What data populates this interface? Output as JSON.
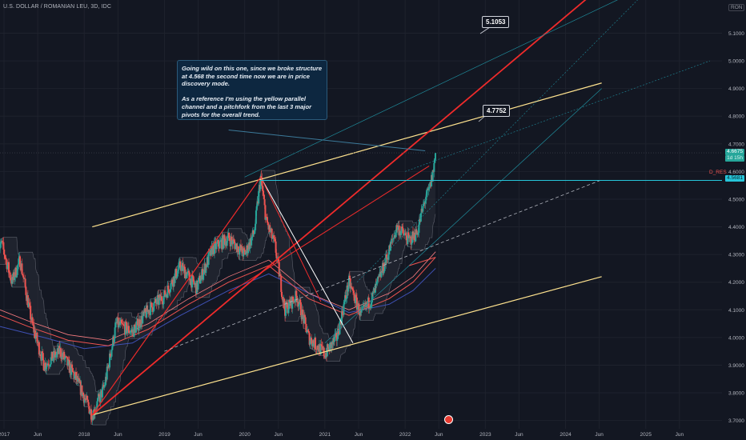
{
  "symbol_title": "U.S. DOLLAR / ROMANIAN LEU, 3D, IDC",
  "currency_badge": "RON",
  "annotation": {
    "line1": "Going wild on this one, since we broke structure at 4.568 the second time now we are in price discovery mode.",
    "line2": "As a reference I'm using the yellow parallel channel and a pitchfork from the last 3 major pivots for the overall trend."
  },
  "callouts": [
    "5.1053",
    "4.7752"
  ],
  "price_tags": {
    "last": "4.6675",
    "countdown": "1d 15h",
    "resistance": "4.5681",
    "resistance_label": "D_RES"
  },
  "icons": {
    "logo": "tradingview-logo"
  },
  "colors": {
    "background": "#131722",
    "up": "#26a69a",
    "down": "#ef5350",
    "channel": "#ffe38f",
    "pitchfork": "#ef2b2b",
    "teal": "#26c6da",
    "ma_blue": "#3f51b5"
  },
  "chart_data": {
    "type": "line",
    "symbol": "USD/RON",
    "interval": "3D",
    "yticks": [
      3.7,
      3.8,
      3.9,
      4.0,
      4.1,
      4.2,
      4.3,
      4.4,
      4.5,
      4.6,
      4.7,
      4.8,
      4.9,
      5.0,
      5.1
    ],
    "ylim": [
      3.67,
      5.22
    ],
    "xlim": [
      2016.95,
      2025.95
    ],
    "xticks": [
      {
        "t": 2017.0,
        "label": "2017"
      },
      {
        "t": 2017.42,
        "label": "Jun"
      },
      {
        "t": 2018.0,
        "label": "2018"
      },
      {
        "t": 2018.42,
        "label": "Jun"
      },
      {
        "t": 2019.0,
        "label": "2019"
      },
      {
        "t": 2019.42,
        "label": "Jun"
      },
      {
        "t": 2020.0,
        "label": "2020"
      },
      {
        "t": 2020.42,
        "label": "Jun"
      },
      {
        "t": 2021.0,
        "label": "2021"
      },
      {
        "t": 2021.42,
        "label": "Jun"
      },
      {
        "t": 2022.0,
        "label": "2022"
      },
      {
        "t": 2022.42,
        "label": "Jun"
      },
      {
        "t": 2023.0,
        "label": "2023"
      },
      {
        "t": 2023.42,
        "label": "Jun"
      },
      {
        "t": 2024.0,
        "label": "2024"
      },
      {
        "t": 2024.42,
        "label": "Jun"
      },
      {
        "t": 2025.0,
        "label": "2025"
      },
      {
        "t": 2025.42,
        "label": "Jun"
      }
    ],
    "price_path": [
      [
        2016.92,
        4.3
      ],
      [
        2016.97,
        4.34
      ],
      [
        2017.1,
        4.2
      ],
      [
        2017.2,
        4.28
      ],
      [
        2017.35,
        4.05
      ],
      [
        2017.5,
        3.9
      ],
      [
        2017.7,
        3.95
      ],
      [
        2017.9,
        3.85
      ],
      [
        2018.1,
        3.72
      ],
      [
        2018.25,
        3.82
      ],
      [
        2018.4,
        4.05
      ],
      [
        2018.6,
        4.02
      ],
      [
        2018.8,
        4.1
      ],
      [
        2019.0,
        4.15
      ],
      [
        2019.2,
        4.26
      ],
      [
        2019.4,
        4.18
      ],
      [
        2019.6,
        4.32
      ],
      [
        2019.8,
        4.36
      ],
      [
        2020.0,
        4.3
      ],
      [
        2020.12,
        4.38
      ],
      [
        2020.2,
        4.58
      ],
      [
        2020.27,
        4.42
      ],
      [
        2020.38,
        4.33
      ],
      [
        2020.5,
        4.1
      ],
      [
        2020.65,
        4.15
      ],
      [
        2020.8,
        4.0
      ],
      [
        2021.0,
        3.94
      ],
      [
        2021.15,
        4.0
      ],
      [
        2021.3,
        4.2
      ],
      [
        2021.45,
        4.08
      ],
      [
        2021.6,
        4.15
      ],
      [
        2021.75,
        4.27
      ],
      [
        2021.9,
        4.4
      ],
      [
        2022.05,
        4.35
      ],
      [
        2022.15,
        4.38
      ],
      [
        2022.25,
        4.5
      ],
      [
        2022.3,
        4.53
      ],
      [
        2022.35,
        4.6
      ],
      [
        2022.38,
        4.667
      ]
    ],
    "ma_red": [
      [
        2016.95,
        4.08
      ],
      [
        2017.3,
        4.04
      ],
      [
        2017.8,
        3.99
      ],
      [
        2018.3,
        3.97
      ],
      [
        2018.8,
        4.03
      ],
      [
        2019.3,
        4.12
      ],
      [
        2019.8,
        4.2
      ],
      [
        2020.3,
        4.26
      ],
      [
        2020.8,
        4.14
      ],
      [
        2021.3,
        4.08
      ],
      [
        2021.8,
        4.14
      ],
      [
        2022.1,
        4.2
      ],
      [
        2022.38,
        4.29
      ]
    ],
    "ma_blue": [
      [
        2016.95,
        4.04
      ],
      [
        2017.5,
        4.0
      ],
      [
        2018.0,
        3.96
      ],
      [
        2018.6,
        3.98
      ],
      [
        2019.2,
        4.08
      ],
      [
        2019.8,
        4.17
      ],
      [
        2020.3,
        4.23
      ],
      [
        2020.8,
        4.16
      ],
      [
        2021.3,
        4.09
      ],
      [
        2021.8,
        4.12
      ],
      [
        2022.1,
        4.17
      ],
      [
        2022.38,
        4.25
      ]
    ],
    "channel_upper": [
      [
        2018.1,
        4.4
      ],
      [
        2024.45,
        4.92
      ]
    ],
    "channel_lower": [
      [
        2018.1,
        3.72
      ],
      [
        2024.45,
        4.22
      ]
    ],
    "pitchfork_median": [
      [
        2018.1,
        3.72
      ],
      [
        2024.45,
        5.27
      ]
    ],
    "pitchfork_mid": [
      [
        2019.0,
        3.95
      ],
      [
        2024.45,
        4.57
      ]
    ],
    "resistance": 4.568,
    "last_price": 4.6675
  }
}
